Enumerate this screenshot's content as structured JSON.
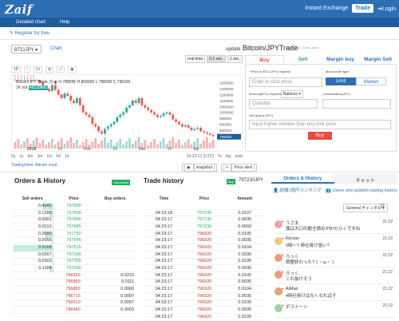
{
  "header": {
    "logo": "Zaif",
    "instant_exchange": "Instant Exchange",
    "trade": "Trade",
    "login": "Login"
  },
  "subnav": {
    "detailed_chart": "Detailed chart",
    "help": "Help"
  },
  "register": "Register for free",
  "pair_select": "BTC/JPY",
  "chart_link": "Chart",
  "realtime": {
    "label": "real time",
    "opt1": "0.1 sec.",
    "opt2": "1 sec."
  },
  "update_label": "update",
  "pair_title": "Bitcoin/JPYTrade",
  "trading_fee": "Trading Fee : -0.01%~-0.01%",
  "tv": {
    "interval": "1D",
    "legend": "Bitcoin/JPY Trade, D  ◉  O 788995 H 809500 L 788000 C 796935",
    "volume": "1K n/a",
    "vol_value": "48120800",
    "x_ticks": [
      "2018",
      "14",
      "Feb",
      "14",
      "Mar",
      "14",
      "Apr"
    ],
    "y_ticks": [
      "1250000",
      "1200000",
      "1150000",
      "1100000",
      "1050000",
      "1000000",
      "950000",
      "900000",
      "850000",
      "800000"
    ],
    "last_price_tag": "796935",
    "ranges": [
      "5y",
      "1y",
      "6m",
      "3m",
      "1m",
      "5d",
      "1d"
    ],
    "time": "19:23:12 (UTC)",
    "pct": "%",
    "log": "log",
    "auto": "auto",
    "credit": "TradingView: Bitcoin chart",
    "snapshot": "snapshot",
    "price_alert": "Price alert"
  },
  "order": {
    "tabs": [
      "Buy",
      "Sell",
      "Margin buy",
      "Margin Sell"
    ],
    "price_label": "* Price in BTC (JPY) required",
    "price_placeholder": "Enter or click price.",
    "order_type_label": "about order type",
    "limit": "Limit",
    "market": "Market",
    "amount_label": "Amount(BTC) required",
    "balance": "Balance",
    "consideration_label": "Consideration(JPY)",
    "quantity_placeholder": "Quantity",
    "sell_limit_label": "Sell limit in (JPY)",
    "sell_limit_placeholder": "Input higher number than buy limit price",
    "buy_button": "Buy"
  },
  "orders": {
    "title": "Orders & History",
    "status": "Connected",
    "headers": [
      "Sell orders",
      "Price",
      "Buy orders"
    ],
    "sell": [
      {
        "qty": "0.4042",
        "price": "797900",
        "bar": 0.26
      },
      {
        "qty": "0.1288",
        "price": "797895",
        "bar": 0.1
      },
      {
        "qty": "0.0001",
        "price": "797890",
        "bar": 0.02
      },
      {
        "qty": "0.0013",
        "price": "797885",
        "bar": 0.02
      },
      {
        "qty": "0.2693",
        "price": "797760",
        "bar": 0.2
      },
      {
        "qty": "0.0056",
        "price": "797645",
        "bar": 0.03
      },
      {
        "qty": "0.9168",
        "price": "797515",
        "bar": 0.97
      },
      {
        "qty": "0.0267",
        "price": "797395",
        "bar": 0.04
      },
      {
        "qty": "0.0303",
        "price": "797305",
        "bar": 0.04
      },
      {
        "qty": "0.1184",
        "price": "797290",
        "bar": 0.1
      }
    ],
    "buy": [
      {
        "price": "796920",
        "qty": "0.0223"
      },
      {
        "price": "796850",
        "qty": "0.0111"
      },
      {
        "price": "796800",
        "qty": "0.0060"
      },
      {
        "price": "796715",
        "qty": "0.0007"
      },
      {
        "price": "796610",
        "qty": "0.0007"
      },
      {
        "price": "796440",
        "qty": "0.0003"
      }
    ]
  },
  "trades": {
    "title": "Trade history",
    "badge": "Buy",
    "last": "797230JPY",
    "headers": [
      "Time",
      "Price",
      "Amount"
    ],
    "rows": [
      {
        "time": "",
        "price": "",
        "amount": ""
      },
      {
        "time": "04:23:18",
        "price": "797230",
        "amount": "0.0107",
        "side": "g"
      },
      {
        "time": "04:23:17",
        "price": "797230",
        "amount": "0.0035",
        "side": "g"
      },
      {
        "time": "04:23:17",
        "price": "797230",
        "amount": "0.0069",
        "side": "g"
      },
      {
        "time": "04:23:17",
        "price": "796920",
        "amount": "0.0105",
        "side": "r"
      },
      {
        "time": "04:23:17",
        "price": "796920",
        "amount": "0.0035",
        "side": "r"
      },
      {
        "time": "04:23:17",
        "price": "796920",
        "amount": "0.0104",
        "side": "r"
      },
      {
        "time": "04:23:17",
        "price": "796920",
        "amount": "0.0035",
        "side": "r"
      },
      {
        "time": "04:23:17",
        "price": "796920",
        "amount": "0.0105",
        "side": "r"
      },
      {
        "time": "04:23:17",
        "price": "796920",
        "amount": "0.0035",
        "side": "r"
      },
      {
        "time": "04:23:17",
        "price": "796920",
        "amount": "0.0105",
        "side": "r"
      },
      {
        "time": "04:23:17",
        "price": "796920",
        "amount": "0.0035",
        "side": "r"
      },
      {
        "time": "04:23:17",
        "price": "796920",
        "amount": "0.0104",
        "side": "r"
      },
      {
        "time": "04:23:17",
        "price": "796920",
        "amount": "0.0035",
        "side": "r"
      },
      {
        "time": "04:23:17",
        "price": "796920",
        "amount": "0.0105",
        "side": "r"
      },
      {
        "time": "04:23:17",
        "price": "796920",
        "amount": "0.0035",
        "side": "r"
      },
      {
        "time": "04:23:17",
        "price": "796920",
        "amount": "0.0105",
        "side": "r"
      }
    ]
  },
  "chat": {
    "tab_orders": "Orders & History",
    "tab_chat": "チャット",
    "ranking": "総額1億円ランキング",
    "publishers": "Users who publish trading history",
    "channel": "General チャンネル",
    "messages": [
      {
        "name": "うさ太",
        "text": "僕は大口の動き読みがBTCらくですね",
        "time": "21:22",
        "color": "#e9a8a8"
      },
      {
        "name": "Recion",
        "text": "5時〜7 時仕掛け狙い?",
        "time": "21:22",
        "color": "#f0c987"
      },
      {
        "name": "ろっく",
        "text": "調整終わった? (´・ω・`)",
        "time": "21:22",
        "color": "#e8a07a"
      },
      {
        "name": "ろっく",
        "text": "これ抜けそう",
        "time": "21:22",
        "color": "#e8a07a"
      },
      {
        "name": "AiMan",
        "text": "4時仕掛けはなくなればそ",
        "time": "21:22",
        "color": "#e8a07a"
      },
      {
        "name": "ポラトーン",
        "text": "",
        "time": "21:22",
        "color": "#9ccfa8"
      }
    ]
  }
}
